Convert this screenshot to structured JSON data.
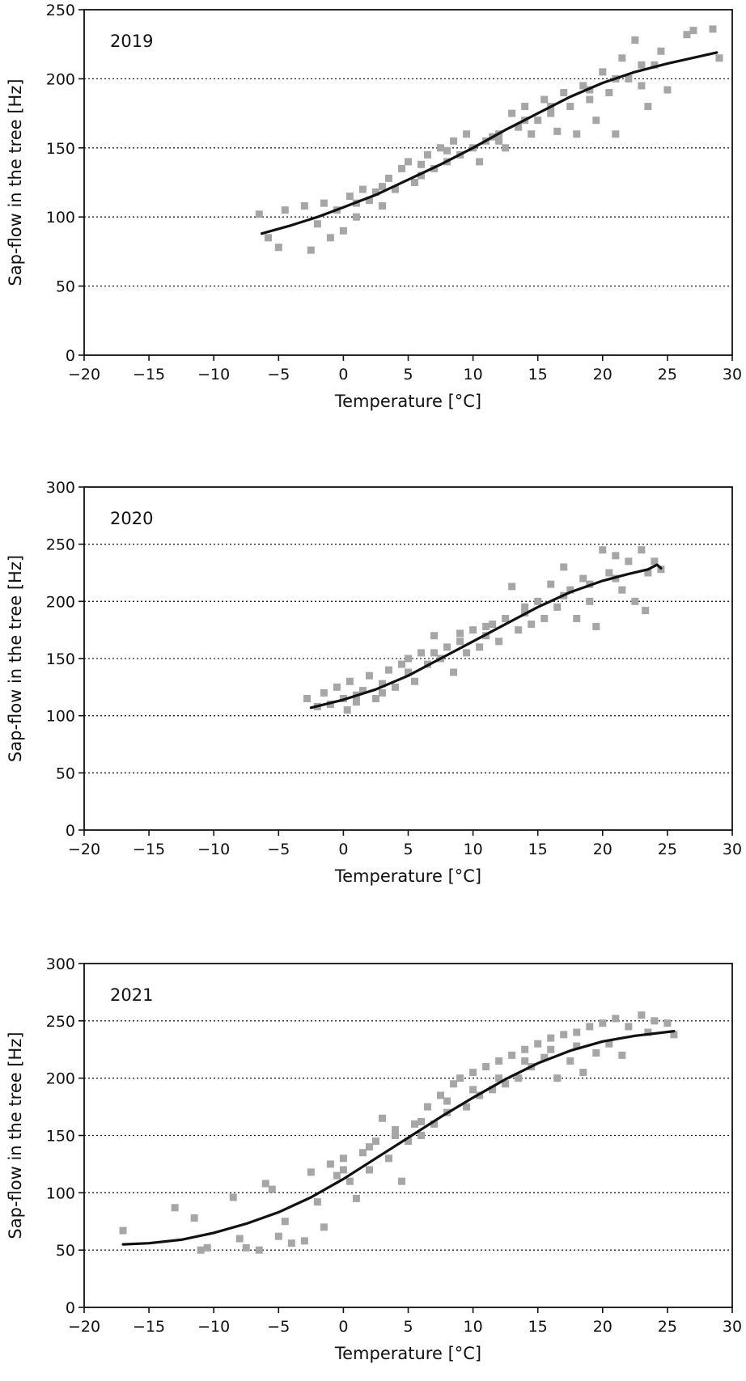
{
  "chart_data": [
    {
      "type": "scatter",
      "title": "2019",
      "xlabel": "Temperature [°C]",
      "ylabel": "Sap-flow in the tree [Hz]",
      "xlim": [
        -20,
        30
      ],
      "ylim": [
        0,
        250
      ],
      "xticks": [
        -20,
        -15,
        -10,
        -5,
        0,
        5,
        10,
        15,
        20,
        25,
        30
      ],
      "yticks": [
        0,
        50,
        100,
        150,
        200,
        250
      ],
      "grid": "horizontal dotted",
      "marker_color": "#a6a6a6",
      "line_color": "#111111",
      "points": [
        [
          -6.5,
          102
        ],
        [
          -5.8,
          85
        ],
        [
          -5,
          78
        ],
        [
          -4.5,
          105
        ],
        [
          -3,
          108
        ],
        [
          -2.5,
          76
        ],
        [
          -2,
          95
        ],
        [
          -1.5,
          110
        ],
        [
          -1,
          85
        ],
        [
          -0.5,
          105
        ],
        [
          0,
          90
        ],
        [
          0.5,
          115
        ],
        [
          1,
          110
        ],
        [
          1.5,
          120
        ],
        [
          2,
          112
        ],
        [
          2.5,
          118
        ],
        [
          3,
          108
        ],
        [
          3.5,
          128
        ],
        [
          4,
          120
        ],
        [
          4.5,
          135
        ],
        [
          5,
          140
        ],
        [
          5.5,
          125
        ],
        [
          6,
          130
        ],
        [
          6.5,
          145
        ],
        [
          7,
          135
        ],
        [
          7.5,
          150
        ],
        [
          8,
          140
        ],
        [
          8.5,
          155
        ],
        [
          9,
          145
        ],
        [
          9.5,
          160
        ],
        [
          10,
          150
        ],
        [
          10.5,
          140
        ],
        [
          11,
          155
        ],
        [
          11.5,
          158
        ],
        [
          12,
          160
        ],
        [
          12.5,
          150
        ],
        [
          13,
          175
        ],
        [
          13.5,
          165
        ],
        [
          14,
          180
        ],
        [
          14.5,
          160
        ],
        [
          15,
          170
        ],
        [
          15.5,
          185
        ],
        [
          16,
          175
        ],
        [
          16.5,
          162
        ],
        [
          17,
          190
        ],
        [
          17.5,
          180
        ],
        [
          18,
          160
        ],
        [
          18.5,
          195
        ],
        [
          19,
          185
        ],
        [
          19.5,
          170
        ],
        [
          20,
          205
        ],
        [
          20.5,
          190
        ],
        [
          21,
          160
        ],
        [
          21.5,
          215
        ],
        [
          22,
          200
        ],
        [
          22.5,
          228
        ],
        [
          23,
          195
        ],
        [
          23.5,
          180
        ],
        [
          24,
          210
        ],
        [
          24.5,
          220
        ],
        [
          25,
          192
        ],
        [
          26.5,
          232
        ],
        [
          27,
          235
        ],
        [
          28.5,
          236
        ],
        [
          29,
          215
        ],
        [
          1,
          100
        ],
        [
          3,
          122
        ],
        [
          6,
          138
        ],
        [
          8,
          148
        ],
        [
          12,
          155
        ],
        [
          14,
          170
        ],
        [
          16,
          180
        ],
        [
          19,
          192
        ],
        [
          21,
          200
        ],
        [
          23,
          210
        ]
      ],
      "fit": [
        [
          -6.3,
          88
        ],
        [
          -4,
          94
        ],
        [
          -2,
          100
        ],
        [
          0,
          107
        ],
        [
          2.5,
          116
        ],
        [
          5,
          127
        ],
        [
          7.5,
          138
        ],
        [
          10,
          150
        ],
        [
          12.5,
          163
        ],
        [
          15,
          175
        ],
        [
          17.5,
          187
        ],
        [
          20,
          197
        ],
        [
          22.5,
          205
        ],
        [
          25,
          211
        ],
        [
          28.8,
          219
        ]
      ]
    },
    {
      "type": "scatter",
      "title": "2020",
      "xlabel": "Temperature [°C]",
      "ylabel": "Sap-flow in the tree [Hz]",
      "xlim": [
        -20,
        30
      ],
      "ylim": [
        0,
        300
      ],
      "xticks": [
        -20,
        -15,
        -10,
        -5,
        0,
        5,
        10,
        15,
        20,
        25,
        30
      ],
      "yticks": [
        0,
        50,
        100,
        150,
        200,
        250,
        300
      ],
      "grid": "horizontal dotted",
      "marker_color": "#a6a6a6",
      "line_color": "#111111",
      "points": [
        [
          -2.8,
          115
        ],
        [
          -2,
          108
        ],
        [
          -1.5,
          120
        ],
        [
          -1,
          110
        ],
        [
          -0.5,
          125
        ],
        [
          0,
          115
        ],
        [
          0.3,
          105
        ],
        [
          0.5,
          130
        ],
        [
          1,
          118
        ],
        [
          1.5,
          122
        ],
        [
          2,
          135
        ],
        [
          2.5,
          115
        ],
        [
          3,
          128
        ],
        [
          3.5,
          140
        ],
        [
          4,
          125
        ],
        [
          4.5,
          145
        ],
        [
          5,
          138
        ],
        [
          5.5,
          130
        ],
        [
          6,
          155
        ],
        [
          6.5,
          145
        ],
        [
          7,
          170
        ],
        [
          7.5,
          150
        ],
        [
          8,
          160
        ],
        [
          8.5,
          138
        ],
        [
          9,
          165
        ],
        [
          9.5,
          155
        ],
        [
          10,
          175
        ],
        [
          10.5,
          160
        ],
        [
          11,
          170
        ],
        [
          11.5,
          180
        ],
        [
          12,
          165
        ],
        [
          12.5,
          185
        ],
        [
          13,
          213
        ],
        [
          13.5,
          175
        ],
        [
          14,
          190
        ],
        [
          14.5,
          180
        ],
        [
          15,
          200
        ],
        [
          15.5,
          185
        ],
        [
          16,
          215
        ],
        [
          16.5,
          195
        ],
        [
          17,
          230
        ],
        [
          17.5,
          210
        ],
        [
          18,
          185
        ],
        [
          18.5,
          220
        ],
        [
          19,
          200
        ],
        [
          19.5,
          178
        ],
        [
          20,
          245
        ],
        [
          20.5,
          225
        ],
        [
          21,
          240
        ],
        [
          21.5,
          210
        ],
        [
          22,
          235
        ],
        [
          22.5,
          200
        ],
        [
          23,
          245
        ],
        [
          23.3,
          192
        ],
        [
          23.5,
          225
        ],
        [
          24,
          235
        ],
        [
          24.5,
          228
        ],
        [
          1,
          112
        ],
        [
          3,
          120
        ],
        [
          5,
          150
        ],
        [
          7,
          155
        ],
        [
          9,
          172
        ],
        [
          11,
          178
        ],
        [
          14,
          195
        ],
        [
          17,
          205
        ],
        [
          19,
          215
        ],
        [
          21,
          220
        ]
      ],
      "fit": [
        [
          -2.5,
          107
        ],
        [
          0,
          114
        ],
        [
          2.5,
          123
        ],
        [
          5,
          135
        ],
        [
          7.5,
          150
        ],
        [
          10,
          165
        ],
        [
          12.5,
          180
        ],
        [
          15,
          195
        ],
        [
          17.5,
          208
        ],
        [
          20,
          218
        ],
        [
          22,
          224
        ],
        [
          23.5,
          228
        ],
        [
          24.2,
          232
        ],
        [
          24.5,
          229
        ]
      ]
    },
    {
      "type": "scatter",
      "title": "2021",
      "xlabel": "Temperature [°C]",
      "ylabel": "Sap-flow in the tree [Hz]",
      "xlim": [
        -20,
        30
      ],
      "ylim": [
        0,
        300
      ],
      "xticks": [
        -20,
        -15,
        -10,
        -5,
        0,
        5,
        10,
        15,
        20,
        25,
        30
      ],
      "yticks": [
        0,
        50,
        100,
        150,
        200,
        250,
        300
      ],
      "grid": "horizontal dotted",
      "marker_color": "#a6a6a6",
      "line_color": "#111111",
      "points": [
        [
          -17,
          67
        ],
        [
          -13,
          87
        ],
        [
          -11.5,
          78
        ],
        [
          -11,
          50
        ],
        [
          -10.5,
          52
        ],
        [
          -8.5,
          96
        ],
        [
          -8,
          60
        ],
        [
          -7.5,
          52
        ],
        [
          -6.5,
          50
        ],
        [
          -6,
          108
        ],
        [
          -5.5,
          103
        ],
        [
          -5,
          62
        ],
        [
          -4.5,
          75
        ],
        [
          -4,
          56
        ],
        [
          -3,
          58
        ],
        [
          -2.5,
          118
        ],
        [
          -2,
          92
        ],
        [
          -1.5,
          70
        ],
        [
          -1,
          125
        ],
        [
          -0.5,
          115
        ],
        [
          0,
          130
        ],
        [
          0.5,
          110
        ],
        [
          1,
          95
        ],
        [
          1.5,
          135
        ],
        [
          2,
          120
        ],
        [
          2.5,
          145
        ],
        [
          3,
          165
        ],
        [
          3.5,
          130
        ],
        [
          4,
          155
        ],
        [
          4.5,
          110
        ],
        [
          5,
          145
        ],
        [
          5.5,
          160
        ],
        [
          6,
          150
        ],
        [
          6.5,
          175
        ],
        [
          7,
          160
        ],
        [
          7.5,
          185
        ],
        [
          8,
          170
        ],
        [
          8.5,
          195
        ],
        [
          9,
          200
        ],
        [
          9.5,
          175
        ],
        [
          10,
          205
        ],
        [
          10.5,
          185
        ],
        [
          11,
          210
        ],
        [
          11.5,
          190
        ],
        [
          12,
          215
        ],
        [
          12.5,
          195
        ],
        [
          13,
          220
        ],
        [
          13.5,
          200
        ],
        [
          14,
          225
        ],
        [
          14.5,
          210
        ],
        [
          15,
          230
        ],
        [
          15.5,
          218
        ],
        [
          16,
          235
        ],
        [
          16.5,
          200
        ],
        [
          17,
          238
        ],
        [
          17.5,
          215
        ],
        [
          18,
          240
        ],
        [
          18.5,
          205
        ],
        [
          19,
          245
        ],
        [
          19.5,
          222
        ],
        [
          20,
          248
        ],
        [
          20.5,
          230
        ],
        [
          21,
          252
        ],
        [
          21.5,
          220
        ],
        [
          22,
          245
        ],
        [
          23,
          255
        ],
        [
          23.5,
          240
        ],
        [
          24,
          250
        ],
        [
          25,
          248
        ],
        [
          25.5,
          238
        ],
        [
          0,
          120
        ],
        [
          2,
          140
        ],
        [
          4,
          150
        ],
        [
          6,
          162
        ],
        [
          8,
          180
        ],
        [
          10,
          190
        ],
        [
          12,
          200
        ],
        [
          14,
          215
        ],
        [
          16,
          225
        ],
        [
          18,
          228
        ]
      ],
      "fit": [
        [
          -17,
          55
        ],
        [
          -15,
          56
        ],
        [
          -12.5,
          59
        ],
        [
          -10,
          65
        ],
        [
          -7.5,
          73
        ],
        [
          -5,
          83
        ],
        [
          -2.5,
          96
        ],
        [
          0,
          112
        ],
        [
          2.5,
          130
        ],
        [
          5,
          148
        ],
        [
          7.5,
          166
        ],
        [
          10,
          183
        ],
        [
          12.5,
          199
        ],
        [
          15,
          213
        ],
        [
          17.5,
          224
        ],
        [
          20,
          232
        ],
        [
          22.5,
          237
        ],
        [
          25.5,
          241
        ]
      ]
    }
  ]
}
